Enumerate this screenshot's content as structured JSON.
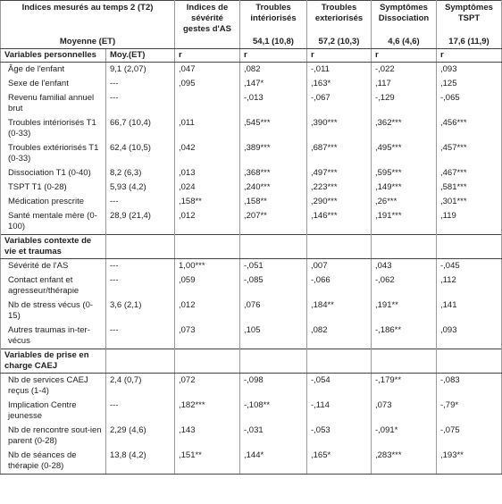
{
  "header": {
    "title": "Indices mesurés au temps 2 (T2)",
    "subtitle": "Moyenne (ET)",
    "columns": [
      {
        "title": "Indices de sévérité gestes d'AS",
        "mean": null
      },
      {
        "title": "Troubles intériorisés",
        "mean": "54,1 (10,8)"
      },
      {
        "title": "Troubles exteriorisés",
        "mean": "57,2 (10,3)"
      },
      {
        "title": "Symptômes Dissociation",
        "mean": "4,6 (4,6)"
      },
      {
        "title": "Symptômes TSPT",
        "mean": "17,6 (11,9)"
      }
    ]
  },
  "subheader": {
    "mean_label": "Moy.(ET)",
    "r_labels": [
      "r",
      "r",
      "r",
      "r",
      "r"
    ]
  },
  "sections": [
    {
      "title": "Variables personnelles",
      "rows": [
        {
          "label": "Âge de l'enfant",
          "mean": "9,1 (2,07)",
          "r": [
            ",047",
            ",082",
            "-,011",
            "-,022",
            ",093"
          ]
        },
        {
          "label": "Sexe de l'enfant",
          "mean": "---",
          "r": [
            ",095",
            ",147*",
            ",163*",
            ",117",
            ",125"
          ]
        },
        {
          "label": "Revenu familial annuel brut",
          "mean": "---",
          "r": [
            null,
            "-,013",
            "-,067",
            "-,129",
            "-,065"
          ]
        },
        {
          "label": "Troubles intériorisés T1 (0-33)",
          "mean": "66,7 (10,4)",
          "r": [
            ",011",
            ",545***",
            ",390***",
            ",362***",
            ",456***"
          ]
        },
        {
          "label": "Troubles extériorisés T1 (0-33)",
          "mean": "62,4 (10,5)",
          "r": [
            ",042",
            ",389***",
            ",687***",
            ",495***",
            ",457***"
          ]
        },
        {
          "label": "Dissociation T1 (0-40)",
          "mean": "8,2 (6,3)",
          "r": [
            ",013",
            ",368***",
            ",497***",
            ",595***",
            ",467***"
          ]
        },
        {
          "label": "TSPT T1 (0-28)",
          "mean": "5,93 (4,2)",
          "r": [
            ",024",
            ",240***",
            ",223***",
            ",149***",
            ",581***"
          ]
        },
        {
          "label": "Médication prescrite",
          "mean": "---",
          "r": [
            ",158**",
            ",158**",
            ",290***",
            ",26***",
            ",301***"
          ]
        },
        {
          "label": "Santé mentale mère (0-100)",
          "mean": "28,9 (21,4)",
          "r": [
            ",012",
            ",207**",
            ",146***",
            ",191***",
            ",119"
          ]
        }
      ]
    },
    {
      "title": "Variables contexte de vie et traumas",
      "rows": [
        {
          "label": "Sévérité de l'AS",
          "mean": "---",
          "r": [
            "1,00***",
            "-,051",
            ",007",
            ",043",
            "-,045"
          ]
        },
        {
          "label": "Contact enfant et agresseur/thérapie",
          "mean": "---",
          "r": [
            ",059",
            "-,085",
            "-,066",
            "-,062",
            ",112"
          ]
        },
        {
          "label": "Nb de stress vécus (0-15)",
          "mean": "3,6 (2,1)",
          "r": [
            ",012",
            ",076",
            ",184**",
            ",191**",
            ",141"
          ]
        },
        {
          "label": "Autres traumas in-ter-vécus",
          "mean": "---",
          "r": [
            ",073",
            ",105",
            ",082",
            "-,186**",
            ",093"
          ]
        }
      ]
    },
    {
      "title": "Variables de prise en charge CAEJ",
      "rows": [
        {
          "label": "Nb de services CAEJ reçus (1-4)",
          "mean": "2,4 (0,7)",
          "r": [
            ",072",
            "-,098",
            "-,054",
            "-,179**",
            "-,083"
          ]
        },
        {
          "label": "Implication Centre jeunesse",
          "mean": "---",
          "r": [
            ",182***",
            "-,108**",
            "-,114",
            ",073",
            "-,79*"
          ]
        },
        {
          "label": "Nb de rencontre sout-ien parent (0-28)",
          "mean": "2,29 (4,6)",
          "r": [
            ",143",
            "-,031",
            "-,053",
            "-,091*",
            "-,075"
          ]
        },
        {
          "label": "Nb de séances de thérapie (0-28)",
          "mean": "13,8 (4,2)",
          "r": [
            ",151**",
            ",144*",
            ",165*",
            ",283***",
            ",193**"
          ]
        }
      ]
    }
  ]
}
